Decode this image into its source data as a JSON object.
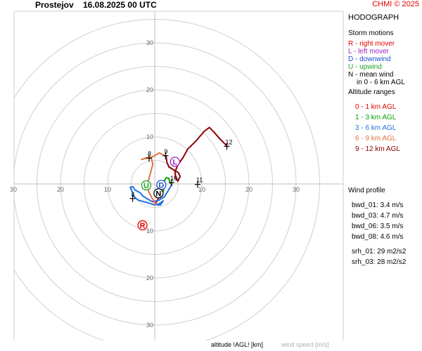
{
  "header": {
    "station": "Prostejov",
    "datetime": "16.08.2025 00 UTC",
    "copyright": "CHMI © 2025"
  },
  "legend": {
    "title": "HODOGRAPH",
    "storm_motions_title": "Storm motions",
    "storm_motions": [
      {
        "text": "R - right mover",
        "color": "#e00000"
      },
      {
        "text": "L - left mover",
        "color": "#a020c0"
      },
      {
        "text": "D - downwind",
        "color": "#2050d0"
      },
      {
        "text": "U - upwind",
        "color": "#20a020"
      },
      {
        "text": "N - mean wind",
        "color": "#000000"
      },
      {
        "text": "in 0 - 6 km AGL",
        "color": "#000000"
      }
    ],
    "altitude_title": "Altitude ranges",
    "altitude_ranges": [
      {
        "text": "0 - 1 km AGL",
        "color": "#e00000"
      },
      {
        "text": "1 - 3 km AGL",
        "color": "#00a000"
      },
      {
        "text": "3 - 6 km AGL",
        "color": "#2070e0"
      },
      {
        "text": "6 - 9 km AGL",
        "color": "#e07040"
      },
      {
        "text": "9 - 12 km AGL",
        "color": "#8b0000"
      }
    ],
    "wind_profile_title": "Wind profile",
    "wind_profile": [
      "bwd_01: 3.4 m/s",
      "bwd_03: 4.7 m/s",
      "bwd_06: 3.5 m/s",
      "bwd_08: 4.6 m/s"
    ],
    "srh": [
      "srh_01: 29 m2/s2",
      "srh_03: 28 m2/s2"
    ]
  },
  "footer": {
    "altitude_label": "altitude !AGL! [km]",
    "speed_label": "wind speed [m/s]"
  },
  "chart_data": {
    "type": "hodograph",
    "units": "m/s",
    "ring_values": [
      5,
      10,
      15,
      20,
      25,
      30,
      35
    ],
    "axis_tick_labels": [
      10,
      20,
      30
    ],
    "x_tick_values": [
      -30,
      -20,
      -10,
      10,
      20,
      30
    ],
    "y_tick_values": [
      30,
      20,
      10,
      -10,
      -20,
      -30
    ],
    "segments": [
      {
        "range": "0 - 1 km AGL",
        "color": "#e00000",
        "points": [
          [
            0.3,
            -4.0
          ],
          [
            0.8,
            -3.0
          ],
          [
            1.2,
            -2.0
          ],
          [
            1.8,
            -1.6
          ]
        ]
      },
      {
        "range": "1 - 3 km AGL",
        "color": "#00a000",
        "points": [
          [
            1.8,
            -1.6
          ],
          [
            2.0,
            -0.8
          ],
          [
            2.3,
            -0.3
          ],
          [
            2.0,
            0.5
          ],
          [
            2.4,
            1.3
          ],
          [
            3.0,
            1.2
          ],
          [
            3.2,
            0.4
          ],
          [
            3.6,
            -0.2
          ]
        ]
      },
      {
        "range": "3 - 6 km AGL",
        "color": "#2070e0",
        "points": [
          [
            3.6,
            -0.2
          ],
          [
            2.8,
            -1.5
          ],
          [
            2.0,
            -2.8
          ],
          [
            0.8,
            -3.5
          ],
          [
            -0.5,
            -3.8
          ],
          [
            -1.5,
            -3.2
          ],
          [
            -2.5,
            -2.6
          ],
          [
            -3.2,
            -1.8
          ],
          [
            -4.2,
            -1.3
          ],
          [
            -4.6,
            -0.6
          ],
          [
            -5.2,
            -0.7
          ],
          [
            -4.8,
            -1.6
          ],
          [
            -4.6,
            -2.5
          ],
          [
            -3.6,
            -3.4
          ],
          [
            -1.5,
            -4.0
          ],
          [
            0.0,
            -4.5
          ],
          [
            1.0,
            -4.2
          ],
          [
            1.8,
            -3.6
          ],
          [
            1.2,
            -4.5
          ],
          [
            0.2,
            -4.4
          ]
        ]
      },
      {
        "range": "6 - 9 km AGL",
        "color": "#e07040",
        "points": [
          [
            0.2,
            -4.4
          ],
          [
            -0.6,
            -3.0
          ],
          [
            -1.3,
            -1.6
          ],
          [
            -1.5,
            0.0
          ],
          [
            -1.0,
            2.0
          ],
          [
            -0.4,
            4.2
          ],
          [
            -0.7,
            5.4
          ],
          [
            -1.6,
            5.6
          ],
          [
            -2.8,
            5.2
          ],
          [
            -0.4,
            5.8
          ],
          [
            1.0,
            6.6
          ],
          [
            1.9,
            6.1
          ],
          [
            2.4,
            5.8
          ]
        ]
      },
      {
        "range": "9 - 12 km AGL",
        "color": "#8b0000",
        "points": [
          [
            2.4,
            5.8
          ],
          [
            2.6,
            4.6
          ],
          [
            3.0,
            3.6
          ],
          [
            4.0,
            3.0
          ],
          [
            5.0,
            2.4
          ],
          [
            5.4,
            1.6
          ],
          [
            4.9,
            0.6
          ],
          [
            4.4,
            1.3
          ],
          [
            4.3,
            2.6
          ],
          [
            5.0,
            4.2
          ],
          [
            6.0,
            5.6
          ],
          [
            7.0,
            7.4
          ],
          [
            8.8,
            9.2
          ],
          [
            10.5,
            11.2
          ],
          [
            11.6,
            12.0
          ],
          [
            12.6,
            11.0
          ],
          [
            13.8,
            9.6
          ],
          [
            15.2,
            8.2
          ],
          [
            15.3,
            7.9
          ]
        ]
      }
    ],
    "altitude_markers": [
      {
        "label": "4",
        "u": -4.7,
        "v": -3.1
      },
      {
        "label": "8",
        "u": -1.2,
        "v": 5.5
      },
      {
        "label": "9",
        "u": 2.3,
        "v": 6.0
      },
      {
        "label": "10",
        "u": 3.6,
        "v": 0.3
      },
      {
        "label": "11",
        "u": 9.1,
        "v": -0.1
      },
      {
        "label": "12",
        "u": 15.3,
        "v": 8.0
      }
    ],
    "storm_motions": [
      {
        "key": "R",
        "u": -2.6,
        "v": -8.8,
        "color": "#e00000"
      },
      {
        "key": "L",
        "u": 4.3,
        "v": 4.7,
        "color": "#a020c0"
      },
      {
        "key": "D",
        "u": 1.4,
        "v": -0.2,
        "color": "#2050d0"
      },
      {
        "key": "U",
        "u": -1.8,
        "v": -0.3,
        "color": "#20a020"
      },
      {
        "key": "N",
        "u": 0.8,
        "v": -2.0,
        "color": "#000000"
      }
    ]
  }
}
